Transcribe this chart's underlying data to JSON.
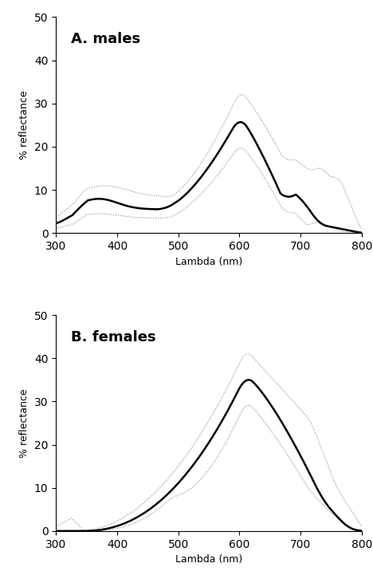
{
  "title_a": "A. males",
  "title_b": "B. females",
  "xlabel": "Lambda (nm)",
  "ylabel": "% reflectance",
  "xlim": [
    300,
    800
  ],
  "ylim_a": [
    0,
    50
  ],
  "ylim_b": [
    0,
    50
  ],
  "yticks": [
    0,
    10,
    20,
    30,
    40,
    50
  ],
  "xticks": [
    300,
    400,
    500,
    600,
    700,
    800
  ],
  "background_color": "#ffffff",
  "mean_color": "#000000",
  "ci_color": "#888888",
  "mean_lw": 1.8,
  "ci_lw": 0.8,
  "ci_linestyle": "dotted"
}
